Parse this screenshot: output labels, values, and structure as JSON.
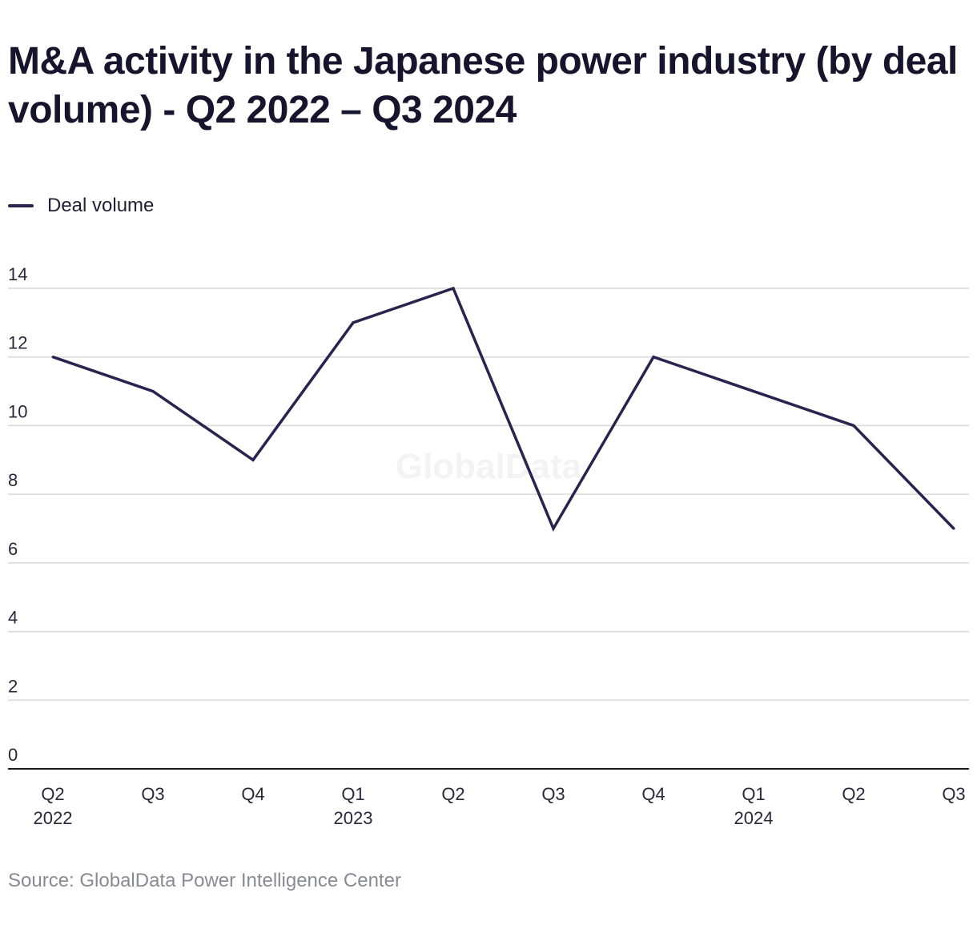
{
  "title": "M&A activity in the Japanese power industry (by deal volume) - Q2 2022 – Q3 2024",
  "legend": {
    "label": "Deal volume",
    "color": "#2d2150"
  },
  "watermark": "GlobalData",
  "source": "Source: GlobalData Power Intelligence Center",
  "colors": {
    "gridline": "#d9d9dc",
    "axis": "#1a1a1a",
    "series": "#2d2150"
  },
  "chart_data": {
    "type": "line",
    "title": "M&A activity in the Japanese power industry (by deal volume) - Q2 2022 – Q3 2024",
    "xlabel": "",
    "ylabel": "",
    "ylim": [
      0,
      14
    ],
    "yticks": [
      0,
      2,
      4,
      6,
      8,
      10,
      12,
      14
    ],
    "grid": true,
    "legend_position": "top-left",
    "categories": [
      "Q2 2022",
      "Q3 2022",
      "Q4 2022",
      "Q1 2023",
      "Q2 2023",
      "Q3 2023",
      "Q4 2023",
      "Q1 2024",
      "Q2 2024",
      "Q3 2024"
    ],
    "tick_labels": [
      {
        "quarter": "Q2",
        "year": "2022"
      },
      {
        "quarter": "Q3",
        "year": ""
      },
      {
        "quarter": "Q4",
        "year": ""
      },
      {
        "quarter": "Q1",
        "year": "2023"
      },
      {
        "quarter": "Q2",
        "year": ""
      },
      {
        "quarter": "Q3",
        "year": ""
      },
      {
        "quarter": "Q4",
        "year": ""
      },
      {
        "quarter": "Q1",
        "year": "2024"
      },
      {
        "quarter": "Q2",
        "year": ""
      },
      {
        "quarter": "Q3",
        "year": ""
      }
    ],
    "series": [
      {
        "name": "Deal volume",
        "values": [
          12,
          11,
          9,
          13,
          14,
          7,
          12,
          11,
          10,
          7
        ]
      }
    ]
  }
}
